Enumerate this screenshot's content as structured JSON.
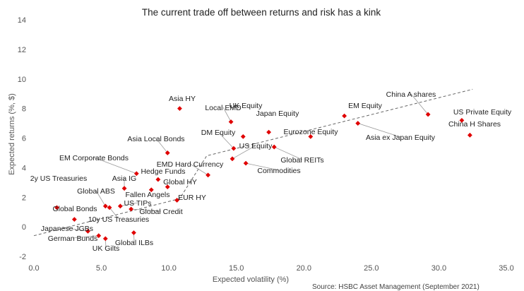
{
  "chart_data": {
    "type": "scatter",
    "title": "The current trade off between returns and risk has a kink",
    "xlabel": "Expected volatility (%)",
    "ylabel": "Expected returns (%, $)",
    "xlim": [
      0,
      35
    ],
    "ylim": [
      -2,
      14
    ],
    "xticks": [
      "0.0",
      "5.0",
      "10.0",
      "15.0",
      "20.0",
      "25.0",
      "30.0",
      "35.0"
    ],
    "yticks": [
      "-2",
      "0",
      "2",
      "4",
      "6",
      "8",
      "10",
      "12",
      "14"
    ],
    "grid": false,
    "marker_color": "#e00000",
    "trend_color": "#666666",
    "source": "Source: HSBC Asset Management (September 2021)",
    "points": [
      {
        "name": "Asia HY",
        "x": 10.8,
        "y": 8.0
      },
      {
        "name": "Local EMD",
        "x": 14.6,
        "y": 7.1
      },
      {
        "name": "UK Equity",
        "x": 15.5,
        "y": 6.1
      },
      {
        "name": "Japan Equity",
        "x": 17.4,
        "y": 6.4
      },
      {
        "name": "Eurozone Equity",
        "x": 20.5,
        "y": 6.1
      },
      {
        "name": "EM Equity",
        "x": 23.0,
        "y": 7.5
      },
      {
        "name": "Asia ex Japan Equity",
        "x": 24.0,
        "y": 7.0
      },
      {
        "name": "China A shares",
        "x": 29.2,
        "y": 7.6
      },
      {
        "name": "US Private Equity",
        "x": 31.7,
        "y": 7.2
      },
      {
        "name": "China H Shares",
        "x": 32.3,
        "y": 6.2
      },
      {
        "name": "DM Equity",
        "x": 14.8,
        "y": 5.3
      },
      {
        "name": "US Equity",
        "x": 14.7,
        "y": 4.6
      },
      {
        "name": "Global REITs",
        "x": 17.8,
        "y": 5.4
      },
      {
        "name": "Commodities",
        "x": 15.7,
        "y": 4.3
      },
      {
        "name": "Asia Local Bonds",
        "x": 9.9,
        "y": 5.0
      },
      {
        "name": "EMD Hard Currency",
        "x": 12.9,
        "y": 3.5
      },
      {
        "name": "EM Corporate Bonds",
        "x": 7.6,
        "y": 3.6
      },
      {
        "name": "Hedge Funds",
        "x": 9.2,
        "y": 3.2
      },
      {
        "name": "Asia IG",
        "x": 6.7,
        "y": 2.6
      },
      {
        "name": "Global HY",
        "x": 9.9,
        "y": 2.7
      },
      {
        "name": "Fallen Angels",
        "x": 8.7,
        "y": 2.5
      },
      {
        "name": "EUR HY",
        "x": 10.6,
        "y": 1.8
      },
      {
        "name": "Global ABS",
        "x": 5.3,
        "y": 1.4
      },
      {
        "name": "US TIPs",
        "x": 6.4,
        "y": 1.4
      },
      {
        "name": "Global Credit",
        "x": 7.2,
        "y": 1.2
      },
      {
        "name": "10y US Treasuries",
        "x": 5.6,
        "y": 1.3
      },
      {
        "name": "2y US Treasuries",
        "x": 1.7,
        "y": 1.3
      },
      {
        "name": "Global Bonds",
        "x": 3.0,
        "y": 0.5
      },
      {
        "name": "Japanese JGBs",
        "x": 4.0,
        "y": -0.3
      },
      {
        "name": "German Bunds",
        "x": 4.8,
        "y": -0.6
      },
      {
        "name": "UK Gilts",
        "x": 5.3,
        "y": -0.8
      },
      {
        "name": "Global ILBs",
        "x": 7.4,
        "y": -0.4
      }
    ],
    "trendline": [
      [
        0,
        -0.6
      ],
      [
        10.8,
        1.9
      ],
      [
        12.8,
        4.8
      ],
      [
        32.5,
        9.3
      ]
    ]
  }
}
